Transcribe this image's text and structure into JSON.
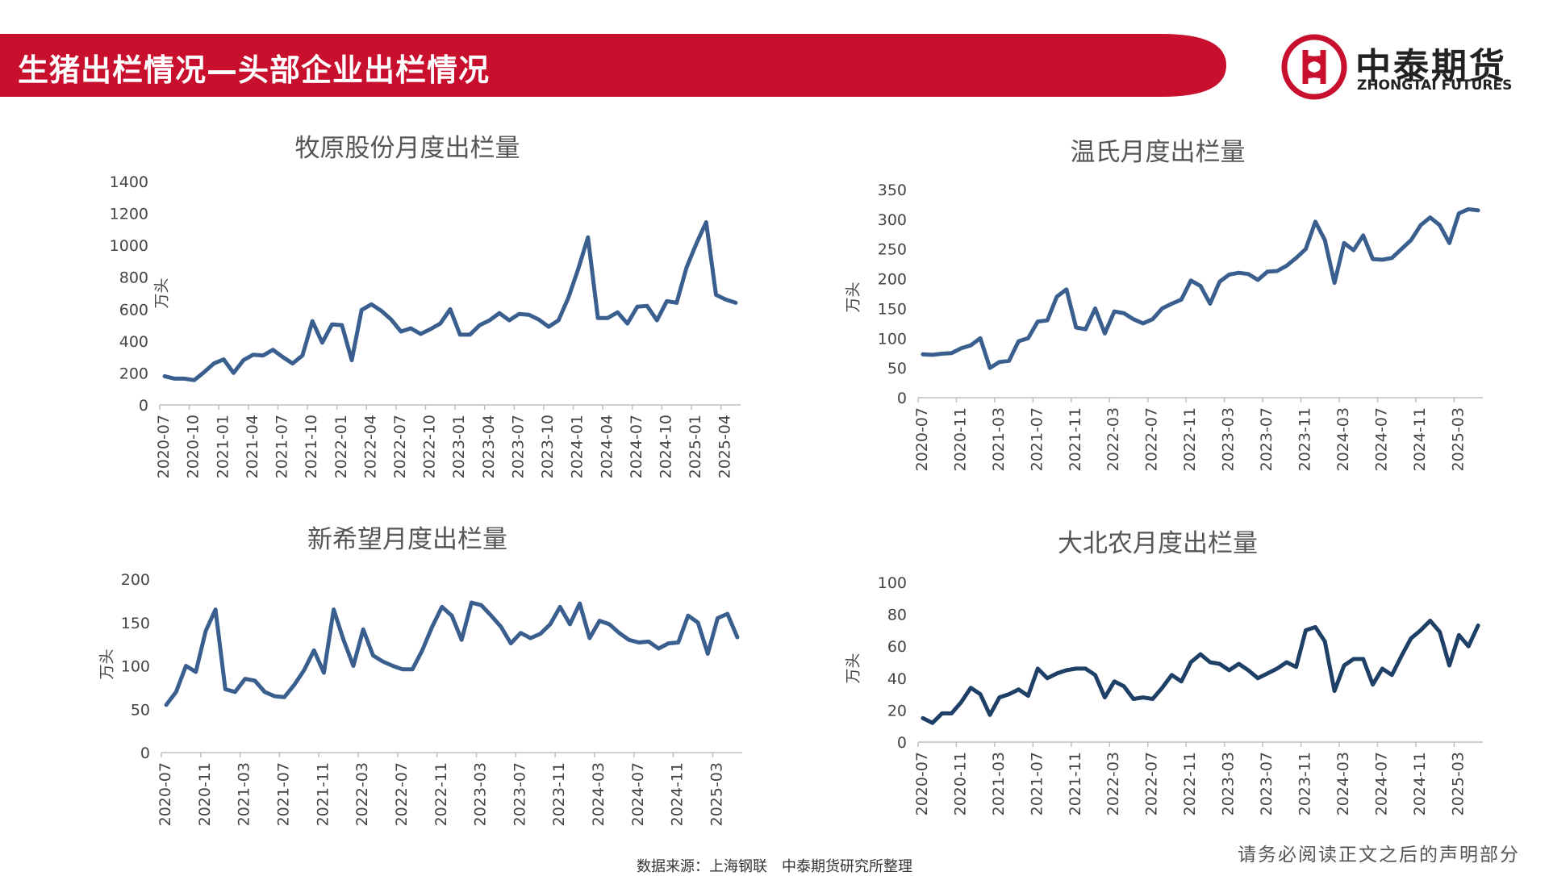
{
  "header": {
    "title": "生猪出栏情况—头部企业出栏情况",
    "brand_color": "#c8102e"
  },
  "logo": {
    "name_cn": "中泰期货",
    "name_en": "ZHONGTAI FUTURES"
  },
  "footer": {
    "source": "数据来源：上海钢联　中泰期货研究所整理",
    "disclaimer": "请务必阅读正文之后的声明部分"
  },
  "chart_data": [
    {
      "id": "muyuan",
      "type": "line",
      "title": "牧原股份月度出栏量",
      "ylabel": "万头",
      "ylim": [
        0,
        1400
      ],
      "yticks": [
        0,
        200,
        400,
        600,
        800,
        1000,
        1200,
        1400
      ],
      "x_tick_labels": [
        "2020-07",
        "2020-10",
        "2021-01",
        "2021-04",
        "2021-07",
        "2021-10",
        "2022-01",
        "2022-04",
        "2022-07",
        "2022-10",
        "2023-01",
        "2023-04",
        "2023-07",
        "2023-10",
        "2024-01",
        "2024-04",
        "2024-07",
        "2024-10",
        "2025-01",
        "2025-04"
      ],
      "x_tick_every": 3,
      "line_color": "#3a5f8f",
      "values": [
        180,
        165,
        165,
        155,
        205,
        260,
        285,
        200,
        280,
        315,
        310,
        345,
        300,
        260,
        310,
        525,
        390,
        505,
        500,
        280,
        595,
        630,
        590,
        535,
        460,
        480,
        445,
        475,
        510,
        600,
        440,
        440,
        500,
        530,
        575,
        530,
        570,
        565,
        535,
        490,
        530,
        670,
        850,
        1050,
        545,
        545,
        580,
        510,
        615,
        620,
        530,
        650,
        640,
        860,
        1010,
        1145,
        690,
        660,
        640
      ]
    },
    {
      "id": "wens",
      "type": "line",
      "title": "温氏月度出栏量",
      "ylabel": "万头",
      "ylim": [
        0,
        350
      ],
      "yticks": [
        0,
        50,
        100,
        150,
        200,
        250,
        300,
        350
      ],
      "x_tick_labels": [
        "2020-07",
        "2020-11",
        "2021-03",
        "2021-07",
        "2021-11",
        "2022-03",
        "2022-07",
        "2022-11",
        "2023-03",
        "2023-07",
        "2023-11",
        "2024-03",
        "2024-07",
        "2024-11",
        "2025-03"
      ],
      "x_tick_every": 4,
      "line_color": "#3a5f8f",
      "values": [
        73,
        72,
        74,
        75,
        83,
        88,
        100,
        50,
        60,
        62,
        95,
        100,
        128,
        130,
        170,
        182,
        118,
        115,
        150,
        108,
        145,
        142,
        132,
        125,
        132,
        150,
        158,
        165,
        197,
        188,
        158,
        195,
        207,
        210,
        208,
        198,
        212,
        213,
        222,
        235,
        250,
        296,
        265,
        193,
        260,
        248,
        273,
        233,
        232,
        235,
        250,
        265,
        290,
        303,
        290,
        260,
        310,
        317,
        315
      ]
    },
    {
      "id": "newhope",
      "type": "line",
      "title": "新希望月度出栏量",
      "ylabel": "万头",
      "ylim": [
        0,
        200
      ],
      "yticks": [
        0,
        50,
        100,
        150,
        200
      ],
      "x_tick_labels": [
        "2020-07",
        "2020-11",
        "2021-03",
        "2021-07",
        "2021-11",
        "2022-03",
        "2022-07",
        "2022-11",
        "2023-03",
        "2023-07",
        "2023-11",
        "2024-03",
        "2024-07",
        "2024-11",
        "2025-03"
      ],
      "x_tick_every": 4,
      "line_color": "#3a5f8f",
      "values": [
        55,
        70,
        100,
        93,
        140,
        165,
        73,
        70,
        85,
        83,
        70,
        65,
        64,
        78,
        95,
        118,
        92,
        165,
        130,
        100,
        142,
        112,
        105,
        100,
        96,
        96,
        118,
        145,
        168,
        158,
        130,
        173,
        170,
        158,
        145,
        126,
        138,
        132,
        137,
        148,
        168,
        148,
        172,
        132,
        152,
        148,
        138,
        130,
        127,
        128,
        120,
        126,
        127,
        158,
        150,
        114,
        155,
        160,
        133
      ]
    },
    {
      "id": "dbn",
      "type": "line",
      "title": "大北农月度出栏量",
      "ylabel": "万头",
      "ylim": [
        0,
        100
      ],
      "yticks": [
        0,
        20,
        40,
        60,
        80,
        100
      ],
      "x_tick_labels": [
        "2020-07",
        "2020-11",
        "2021-03",
        "2021-07",
        "2021-11",
        "2022-03",
        "2022-07",
        "2022-11",
        "2023-03",
        "2023-07",
        "2023-11",
        "2024-03",
        "2024-07",
        "2024-11",
        "2025-03"
      ],
      "x_tick_every": 4,
      "line_color": "#1e3f66",
      "values": [
        15,
        12,
        18,
        18,
        25,
        34,
        30,
        17,
        28,
        30,
        33,
        29,
        46,
        40,
        43,
        45,
        46,
        46,
        42,
        28,
        38,
        35,
        27,
        28,
        27,
        34,
        42,
        38,
        50,
        55,
        50,
        49,
        45,
        49,
        45,
        40,
        43,
        46,
        50,
        47,
        70,
        72,
        63,
        32,
        48,
        52,
        52,
        36,
        46,
        42,
        54,
        65,
        70,
        76,
        69,
        48,
        67,
        60,
        73
      ]
    }
  ]
}
